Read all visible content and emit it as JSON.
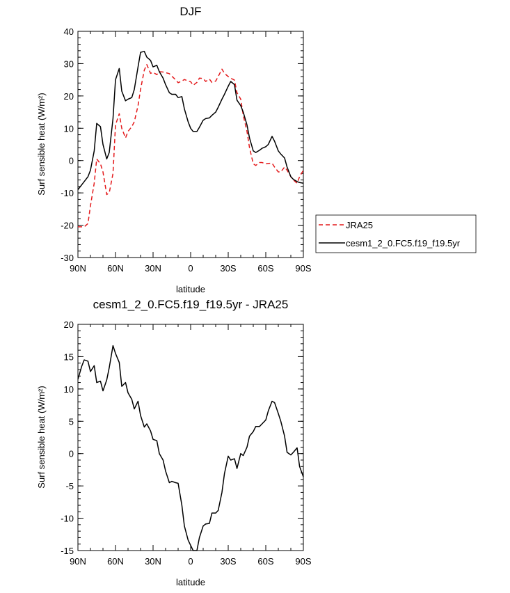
{
  "chart_data": [
    {
      "type": "line",
      "title": "DJF",
      "xlabel": "latitude",
      "ylabel": "Surf sensible heat (W/m²)",
      "xlim": [
        90,
        -90
      ],
      "ylim": [
        -30,
        40
      ],
      "x_ticks": [
        90,
        60,
        30,
        0,
        -30,
        -60,
        -90
      ],
      "x_tick_labels": [
        "90N",
        "60N",
        "30N",
        "0",
        "30S",
        "60S",
        "90S"
      ],
      "y_ticks": [
        -30,
        -20,
        -10,
        0,
        10,
        20,
        30,
        40
      ],
      "y_tick_labels": [
        "-30",
        "-20",
        "-10",
        "0",
        "10",
        "20",
        "30",
        "40"
      ],
      "grid": false,
      "legend_position": "outside-right",
      "series": [
        {
          "name": "JRA25",
          "color": "#e41a1c",
          "dash": "dashed",
          "x": [
            90,
            85,
            82,
            80,
            77,
            75,
            72,
            70,
            67,
            65,
            62,
            60,
            57,
            55,
            52,
            50,
            47,
            45,
            42,
            40,
            37,
            35,
            32,
            30,
            27,
            25,
            22,
            20,
            17,
            15,
            12,
            10,
            7,
            5,
            2,
            0,
            -2,
            -5,
            -7,
            -10,
            -12,
            -15,
            -17,
            -20,
            -22,
            -25,
            -27,
            -30,
            -32,
            -35,
            -37,
            -40,
            -42,
            -45,
            -47,
            -50,
            -52,
            -55,
            -57,
            -60,
            -62,
            -65,
            -67,
            -70,
            -72,
            -75,
            -77,
            -80,
            -82,
            -85,
            -87,
            -90
          ],
          "values": [
            -20.5,
            -20.5,
            -19.5,
            -14,
            -7,
            0.5,
            -1,
            -3.5,
            -10.5,
            -10,
            -4,
            11,
            14.5,
            10,
            7,
            9,
            10.5,
            12,
            17,
            22,
            28,
            29.7,
            27,
            27.3,
            26.6,
            27.5,
            27.4,
            27.2,
            26.9,
            26.1,
            25,
            24.1,
            24.6,
            25.1,
            24.6,
            24.4,
            23.3,
            24.2,
            25.5,
            25.4,
            24.5,
            25.2,
            24.2,
            24.6,
            26,
            28.3,
            27,
            26,
            25.5,
            24.9,
            21,
            19,
            14,
            9,
            4,
            -1,
            -1.5,
            -0.6,
            -0.6,
            -1,
            -0.9,
            -0.8,
            -2,
            -3.5,
            -3.5,
            -2,
            -3,
            -5,
            -6,
            -7,
            -5,
            -3
          ]
        },
        {
          "name": "cesm1_2_0.FC5.f19_f19.5yr",
          "color": "#000000",
          "dash": "solid",
          "x": [
            90,
            85,
            82,
            80,
            77,
            75,
            72,
            70,
            67,
            65,
            62,
            60,
            57,
            55,
            52,
            50,
            47,
            45,
            42,
            40,
            37,
            35,
            32,
            30,
            27,
            25,
            22,
            20,
            17,
            15,
            12,
            10,
            7,
            5,
            2,
            0,
            -2,
            -5,
            -7,
            -10,
            -12,
            -15,
            -17,
            -20,
            -22,
            -25,
            -27,
            -30,
            -32,
            -35,
            -37,
            -40,
            -42,
            -45,
            -47,
            -50,
            -52,
            -55,
            -57,
            -60,
            -62,
            -65,
            -67,
            -70,
            -72,
            -75,
            -77,
            -80,
            -82,
            -85,
            -87,
            -90
          ],
          "values": [
            -9,
            -6.5,
            -5,
            -3,
            3,
            11.5,
            10.5,
            5,
            0.5,
            2.5,
            13,
            25,
            28.5,
            21.5,
            18.5,
            19,
            19.5,
            22,
            29,
            33.5,
            33.8,
            32,
            31,
            29,
            29.5,
            27.5,
            25.5,
            23.5,
            21,
            20.5,
            20.5,
            19.5,
            19.8,
            16,
            12,
            10,
            9,
            9,
            10.3,
            12.5,
            13,
            13.2,
            14,
            15,
            16.5,
            19,
            20.5,
            23,
            24.5,
            23.5,
            18.7,
            17,
            15,
            11,
            7,
            3,
            2.5,
            3.2,
            3.8,
            4.3,
            5,
            7.5,
            6,
            3,
            2,
            0.8,
            -2,
            -5,
            -5.8,
            -6.5,
            -6.8,
            -7
          ]
        }
      ]
    },
    {
      "type": "line",
      "title": "cesm1_2_0.FC5.f19_f19.5yr - JRA25",
      "xlabel": "latitude",
      "ylabel": "Surf sensible heat (W/m²)",
      "xlim": [
        90,
        -90
      ],
      "ylim": [
        -15,
        20
      ],
      "x_ticks": [
        90,
        60,
        30,
        0,
        -30,
        -60,
        -90
      ],
      "x_tick_labels": [
        "90N",
        "60N",
        "30N",
        "0",
        "30S",
        "60S",
        "90S"
      ],
      "y_ticks": [
        -15,
        -10,
        -5,
        0,
        5,
        10,
        15,
        20
      ],
      "y_tick_labels": [
        "-15",
        "-10",
        "-5",
        "0",
        "5",
        "10",
        "15",
        "20"
      ],
      "grid": false,
      "series": [
        {
          "color": "#000000",
          "dash": "solid",
          "x": [
            90,
            87,
            85,
            82,
            80,
            77,
            75,
            72,
            70,
            67,
            65,
            62,
            60,
            57,
            55,
            52,
            50,
            47,
            45,
            42,
            40,
            37,
            35,
            32,
            30,
            27,
            25,
            22,
            20,
            17,
            15,
            12,
            10,
            7,
            5,
            2,
            0,
            -2,
            -5,
            -7,
            -10,
            -12,
            -15,
            -17,
            -20,
            -22,
            -25,
            -27,
            -30,
            -32,
            -35,
            -37,
            -40,
            -42,
            -45,
            -47,
            -50,
            -52,
            -55,
            -57,
            -60,
            -62,
            -65,
            -67,
            -70,
            -72,
            -75,
            -77,
            -80,
            -82,
            -85,
            -87,
            -90
          ],
          "values": [
            11.5,
            13.5,
            14.5,
            14.3,
            12.7,
            13.6,
            11,
            11.2,
            9.7,
            11.4,
            13.3,
            16.7,
            15.5,
            14.1,
            10.4,
            11,
            9.4,
            8.4,
            6.9,
            8.1,
            5.9,
            4.1,
            4.6,
            3.5,
            2.2,
            2,
            0,
            -1,
            -2.7,
            -4.5,
            -4.3,
            -4.5,
            -4.6,
            -8,
            -11.2,
            -13.4,
            -14.2,
            -15,
            -15,
            -13,
            -11.2,
            -10.9,
            -10.8,
            -9.2,
            -9.2,
            -8.8,
            -6,
            -3.1,
            -0.4,
            -1,
            -0.8,
            -2.3,
            0,
            -0.3,
            1,
            2.7,
            3.4,
            4.2,
            4.2,
            4.6,
            5.2,
            6.6,
            8.1,
            7.9,
            6.2,
            5,
            2.7,
            0.2,
            -0.2,
            0.2,
            0.9,
            -2,
            -3.6
          ]
        }
      ]
    }
  ]
}
